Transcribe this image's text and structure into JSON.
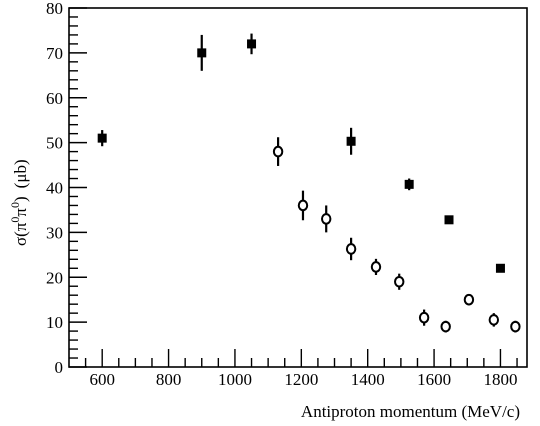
{
  "chart_data": {
    "type": "scatter",
    "xlabel": "Antiproton momentum (MeV/c)",
    "ylabel_parts": {
      "sigma": "σ(π",
      "sup1": "0",
      "mid": "π",
      "sup2": "0",
      "close": ")",
      "unit": "(μb)"
    },
    "xlim": [
      500,
      1880
    ],
    "ylim": [
      0,
      80
    ],
    "x_ticks": [
      600,
      800,
      1000,
      1200,
      1400,
      1600,
      1800
    ],
    "y_ticks": [
      0,
      10,
      20,
      30,
      40,
      50,
      60,
      70,
      80
    ],
    "grid": false,
    "series": [
      {
        "marker": "filled-square",
        "points": [
          {
            "x": 600,
            "y": 51,
            "err": 1.8
          },
          {
            "x": 900,
            "y": 70,
            "err": 4.0
          },
          {
            "x": 1050,
            "y": 72,
            "err": 2.3
          },
          {
            "x": 1350,
            "y": 50.3,
            "err": 3.0
          },
          {
            "x": 1525,
            "y": 40.7,
            "err": 1.3
          },
          {
            "x": 1645,
            "y": 32.8,
            "err": 0.8
          },
          {
            "x": 1800,
            "y": 22,
            "err": 0.8
          }
        ]
      },
      {
        "marker": "open-circle",
        "points": [
          {
            "x": 1130,
            "y": 48,
            "err": 3.2
          },
          {
            "x": 1205,
            "y": 36,
            "err": 3.3
          },
          {
            "x": 1275,
            "y": 33,
            "err": 3.0
          },
          {
            "x": 1350,
            "y": 26.3,
            "err": 2.5
          },
          {
            "x": 1425,
            "y": 22.3,
            "err": 1.8
          },
          {
            "x": 1495,
            "y": 19,
            "err": 1.8
          },
          {
            "x": 1570,
            "y": 11,
            "err": 1.8
          },
          {
            "x": 1635,
            "y": 9,
            "err": 1.3
          },
          {
            "x": 1705,
            "y": 15,
            "err": 1.2
          },
          {
            "x": 1780,
            "y": 10.5,
            "err": 1.5
          },
          {
            "x": 1845,
            "y": 9,
            "err": 1.3
          }
        ]
      }
    ]
  }
}
